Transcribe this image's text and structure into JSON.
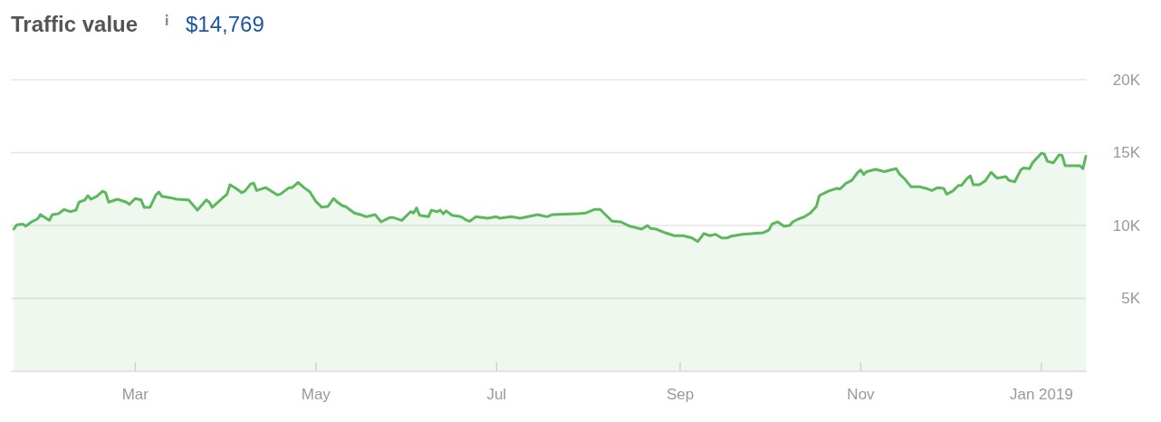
{
  "chart_data": {
    "type": "area",
    "title": "Traffic value",
    "subtitle": "$14,769",
    "x": [
      "2018-01-19",
      "2018-01-20",
      "2018-01-22",
      "2018-01-23",
      "2018-01-25",
      "2018-01-27",
      "2018-01-28",
      "2018-01-31",
      "2018-02-01",
      "2018-02-03",
      "2018-02-05",
      "2018-02-07",
      "2018-02-09",
      "2018-02-10",
      "2018-02-12",
      "2018-02-13",
      "2018-02-14",
      "2018-02-16",
      "2018-02-18",
      "2018-02-19",
      "2018-02-20",
      "2018-02-23",
      "2018-02-26",
      "2018-02-27",
      "2018-03-01",
      "2018-03-03",
      "2018-03-04",
      "2018-03-06",
      "2018-03-08",
      "2018-03-09",
      "2018-03-10",
      "2018-03-13",
      "2018-03-15",
      "2018-03-19",
      "2018-03-22",
      "2018-03-25",
      "2018-03-26",
      "2018-03-27",
      "2018-03-30",
      "2018-04-01",
      "2018-04-02",
      "2018-04-04",
      "2018-04-06",
      "2018-04-07",
      "2018-04-09",
      "2018-04-10",
      "2018-04-11",
      "2018-04-14",
      "2018-04-18",
      "2018-04-19",
      "2018-04-22",
      "2018-04-23",
      "2018-04-25",
      "2018-04-27",
      "2018-04-29",
      "2018-05-01",
      "2018-05-03",
      "2018-05-05",
      "2018-05-07",
      "2018-05-08",
      "2018-05-10",
      "2018-05-11",
      "2018-05-14",
      "2018-05-16",
      "2018-05-18",
      "2018-05-21",
      "2018-05-23",
      "2018-05-26",
      "2018-05-27",
      "2018-05-30",
      "2018-06-02",
      "2018-06-03",
      "2018-06-04",
      "2018-06-05",
      "2018-06-08",
      "2018-06-09",
      "2018-06-11",
      "2018-06-12",
      "2018-06-13",
      "2018-06-14",
      "2018-06-16",
      "2018-06-19",
      "2018-06-21",
      "2018-06-22",
      "2018-06-24",
      "2018-06-28",
      "2018-07-01",
      "2018-07-02",
      "2018-07-06",
      "2018-07-09",
      "2018-07-15",
      "2018-07-18",
      "2018-07-20",
      "2018-07-28",
      "2018-07-31",
      "2018-08-03",
      "2018-08-05",
      "2018-08-07",
      "2018-08-09",
      "2018-08-12",
      "2018-08-15",
      "2018-08-19",
      "2018-08-21",
      "2018-08-22",
      "2018-08-24",
      "2018-08-27",
      "2018-08-30",
      "2018-09-02",
      "2018-09-05",
      "2018-09-07",
      "2018-09-09",
      "2018-09-11",
      "2018-09-13",
      "2018-09-15",
      "2018-09-17",
      "2018-09-18",
      "2018-09-22",
      "2018-09-29",
      "2018-10-01",
      "2018-10-02",
      "2018-10-04",
      "2018-10-06",
      "2018-10-08",
      "2018-10-09",
      "2018-10-11",
      "2018-10-13",
      "2018-10-15",
      "2018-10-17",
      "2018-10-18",
      "2018-10-21",
      "2018-10-24",
      "2018-10-25",
      "2018-10-27",
      "2018-10-29",
      "2018-10-31",
      "2018-11-01",
      "2018-11-02",
      "2018-11-03",
      "2018-11-06",
      "2018-11-09",
      "2018-11-11",
      "2018-11-13",
      "2018-11-14",
      "2018-11-16",
      "2018-11-18",
      "2018-11-21",
      "2018-11-23",
      "2018-11-25",
      "2018-11-27",
      "2018-11-29",
      "2018-11-30",
      "2018-12-02",
      "2018-12-04",
      "2018-12-05",
      "2018-12-07",
      "2018-12-08",
      "2018-12-09",
      "2018-12-11",
      "2018-12-13",
      "2018-12-15",
      "2018-12-17",
      "2018-12-20",
      "2018-12-21",
      "2018-12-23",
      "2018-12-25",
      "2018-12-26",
      "2018-12-28",
      "2018-12-29",
      "2019-01-01",
      "2019-01-02",
      "2019-01-03",
      "2019-01-05",
      "2019-01-07",
      "2019-01-08",
      "2019-01-09",
      "2019-01-14",
      "2019-01-15",
      "2019-01-16"
    ],
    "series": [
      {
        "color": "#5cb85c",
        "values": [
          9750,
          10050,
          10100,
          9950,
          10250,
          10450,
          10750,
          10350,
          10750,
          10800,
          11100,
          10950,
          11050,
          11600,
          11750,
          12050,
          11800,
          12000,
          12350,
          12250,
          11600,
          11800,
          11600,
          11450,
          11850,
          11750,
          11250,
          11250,
          12100,
          12300,
          12000,
          11900,
          11800,
          11750,
          11050,
          11750,
          11600,
          11250,
          11800,
          12150,
          12800,
          12550,
          12250,
          12350,
          12850,
          12900,
          12400,
          12600,
          12100,
          12150,
          12600,
          12600,
          12950,
          12600,
          12300,
          11650,
          11250,
          11300,
          11850,
          11650,
          11350,
          11300,
          10850,
          10750,
          10600,
          10750,
          10250,
          10550,
          10550,
          10350,
          10950,
          10850,
          11200,
          10700,
          10600,
          11050,
          10950,
          11050,
          10800,
          11000,
          10700,
          10600,
          10350,
          10300,
          10600,
          10500,
          10600,
          10500,
          10600,
          10500,
          10750,
          10600,
          10750,
          10800,
          10850,
          11100,
          11100,
          10700,
          10300,
          10250,
          9950,
          9750,
          10000,
          9800,
          9750,
          9500,
          9300,
          9300,
          9150,
          8900,
          9450,
          9300,
          9400,
          9150,
          9150,
          9250,
          9400,
          9500,
          9700,
          10100,
          10250,
          9950,
          10000,
          10250,
          10450,
          10600,
          10850,
          11300,
          12050,
          12350,
          12550,
          12500,
          12900,
          13100,
          13650,
          13800,
          13500,
          13700,
          13850,
          13700,
          13800,
          13900,
          13550,
          13150,
          12650,
          12650,
          12550,
          12400,
          12600,
          12550,
          12150,
          12350,
          12750,
          12750,
          13250,
          13400,
          12800,
          12800,
          13050,
          13650,
          13250,
          13350,
          13100,
          13000,
          13800,
          13950,
          13900,
          14300,
          14950,
          14900,
          14400,
          14300,
          14850,
          14800,
          14100,
          14100,
          13900,
          14750
        ]
      }
    ],
    "xlim": [
      "2018-01-18",
      "2019-01-16"
    ],
    "xticks": [
      {
        "value": "2018-03-01",
        "label": "Mar"
      },
      {
        "value": "2018-05-01",
        "label": "May"
      },
      {
        "value": "2018-07-01",
        "label": "Jul"
      },
      {
        "value": "2018-09-01",
        "label": "Sep"
      },
      {
        "value": "2018-11-01",
        "label": "Nov"
      },
      {
        "value": "2019-01-01",
        "label": "Jan 2019"
      }
    ],
    "ylim": [
      0,
      20000
    ],
    "yticks": [
      {
        "value": 5000,
        "label": "5K"
      },
      {
        "value": 10000,
        "label": "10K"
      },
      {
        "value": 15000,
        "label": "15K"
      },
      {
        "value": 20000,
        "label": "20K"
      }
    ],
    "grid": "y"
  }
}
